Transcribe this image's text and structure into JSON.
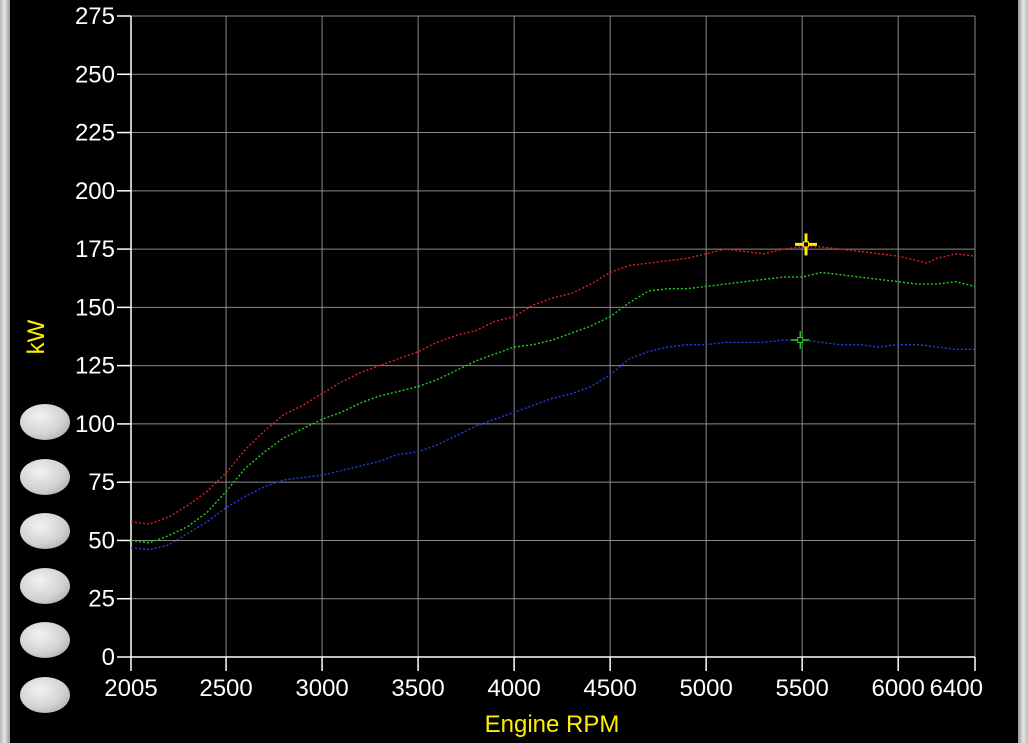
{
  "chart_data": {
    "type": "line",
    "xlabel": "Engine RPM",
    "ylabel": "kW",
    "xlim": [
      2005,
      6400
    ],
    "ylim": [
      0,
      275
    ],
    "x_ticks": [
      2005,
      2500,
      3000,
      3500,
      4000,
      4500,
      5000,
      5500,
      6000,
      6400
    ],
    "x_tick_labels": [
      "2005",
      "2500",
      "3000",
      "3500",
      "4000",
      "4500",
      "5000",
      "5500",
      "6000",
      "6400"
    ],
    "y_ticks": [
      0,
      25,
      50,
      75,
      100,
      125,
      150,
      175,
      200,
      225,
      250,
      275
    ],
    "y_tick_labels": [
      "0",
      "25",
      "50",
      "75",
      "100",
      "125",
      "150",
      "175",
      "200",
      "225",
      "250",
      "275"
    ],
    "grid": true,
    "series": [
      {
        "color": "#e02020",
        "x": [
          2005,
          2100,
          2200,
          2300,
          2400,
          2500,
          2600,
          2700,
          2800,
          2900,
          3000,
          3100,
          3200,
          3300,
          3400,
          3500,
          3600,
          3700,
          3800,
          3900,
          4000,
          4100,
          4200,
          4300,
          4400,
          4500,
          4600,
          4700,
          4800,
          4900,
          5000,
          5100,
          5200,
          5300,
          5400,
          5500,
          5600,
          5700,
          5800,
          5900,
          6000,
          6100,
          6150,
          6200,
          6300,
          6400
        ],
        "y": [
          58,
          57,
          60,
          65,
          71,
          79,
          89,
          97,
          104,
          108,
          113,
          118,
          122,
          125,
          128,
          131,
          135,
          138,
          140,
          144,
          146,
          151,
          154,
          156,
          160,
          165,
          168,
          169,
          170,
          171,
          173,
          175,
          174,
          173,
          175,
          176,
          176,
          175,
          174,
          173,
          172,
          170,
          169,
          171,
          173,
          172
        ]
      },
      {
        "color": "#20d020",
        "x": [
          2005,
          2100,
          2200,
          2300,
          2400,
          2500,
          2600,
          2700,
          2800,
          2900,
          3000,
          3100,
          3200,
          3300,
          3400,
          3500,
          3600,
          3700,
          3800,
          3900,
          4000,
          4100,
          4200,
          4300,
          4400,
          4500,
          4600,
          4700,
          4800,
          4900,
          5000,
          5100,
          5200,
          5300,
          5400,
          5500,
          5600,
          5700,
          5800,
          5900,
          6000,
          6100,
          6200,
          6300,
          6400
        ],
        "y": [
          50,
          49,
          52,
          56,
          62,
          71,
          81,
          88,
          94,
          98,
          102,
          105,
          109,
          112,
          114,
          116,
          119,
          123,
          127,
          130,
          133,
          134,
          136,
          139,
          142,
          146,
          152,
          157,
          158,
          158,
          159,
          160,
          161,
          162,
          163,
          163,
          165,
          164,
          163,
          162,
          161,
          160,
          160,
          161,
          159
        ]
      },
      {
        "color": "#2040e0",
        "x": [
          2005,
          2100,
          2200,
          2300,
          2400,
          2500,
          2600,
          2700,
          2800,
          2900,
          3000,
          3100,
          3200,
          3300,
          3400,
          3500,
          3600,
          3700,
          3800,
          3900,
          4000,
          4100,
          4200,
          4300,
          4400,
          4500,
          4600,
          4700,
          4800,
          4900,
          5000,
          5100,
          5200,
          5300,
          5400,
          5500,
          5600,
          5700,
          5800,
          5900,
          6000,
          6100,
          6200,
          6300,
          6400
        ],
        "y": [
          47,
          46,
          48,
          53,
          58,
          64,
          69,
          73,
          76,
          77,
          78,
          80,
          82,
          84,
          87,
          88,
          91,
          95,
          99,
          102,
          105,
          108,
          111,
          113,
          116,
          121,
          128,
          131,
          133,
          134,
          134,
          135,
          135,
          135,
          136,
          136,
          135,
          134,
          134,
          133,
          134,
          134,
          133,
          132,
          132
        ]
      }
    ],
    "cursors": [
      {
        "color": "#ffee00",
        "x": 5520,
        "y": 177
      },
      {
        "color": "#20d020",
        "x": 5490,
        "y": 136
      }
    ]
  },
  "colors": {
    "background": "#000000",
    "grid": "#8a8a8a",
    "tick_text": "#ffffff",
    "axis_title": "#ffee00"
  },
  "side_buttons": {
    "count": 6,
    "icon": "oval-button"
  }
}
